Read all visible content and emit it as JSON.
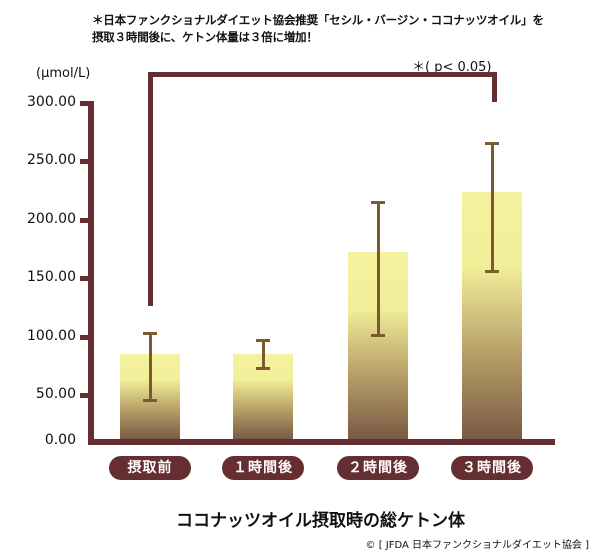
{
  "header": {
    "note_line1": "＊日本ファンクショナルダイエット協会推奨「セシル・バージン・ココナッツオイル」を",
    "note_line2": "摂取３時間後に、ケトン体量は３倍に増加！"
  },
  "chart_data": {
    "type": "bar",
    "title": "ココナッツオイル摂取時の総ケトン体",
    "xlabel": "",
    "ylabel": "(μmol/L)",
    "ylim": [
      0,
      300
    ],
    "yticks": [
      "0.00",
      "50.00",
      "100.00",
      "150.00",
      "200.00",
      "250.00",
      "300.00"
    ],
    "categories": [
      "摂取前",
      "１時間後",
      "２時間後",
      "３時間後"
    ],
    "values": [
      85.5,
      85.5,
      172.6,
      223.9
    ],
    "error_low": [
      43.6,
      72.6,
      100.9,
      155.6
    ],
    "error_high": [
      102.5,
      96.6,
      214.5,
      265.0
    ],
    "annotation": "＊( p< 0.05)",
    "significance_between": [
      "摂取前",
      "３時間後"
    ],
    "grid": false,
    "colors": {
      "axis": "#652f31",
      "bar_top": "#f4f29e",
      "bar_bottom": "#7a5a45",
      "error_bar": "#7a5a2e",
      "label_pill": "#652f31"
    }
  },
  "footer": {
    "credit": "© [ JFDA 日本ファンクショナルダイエット協会 ]"
  }
}
